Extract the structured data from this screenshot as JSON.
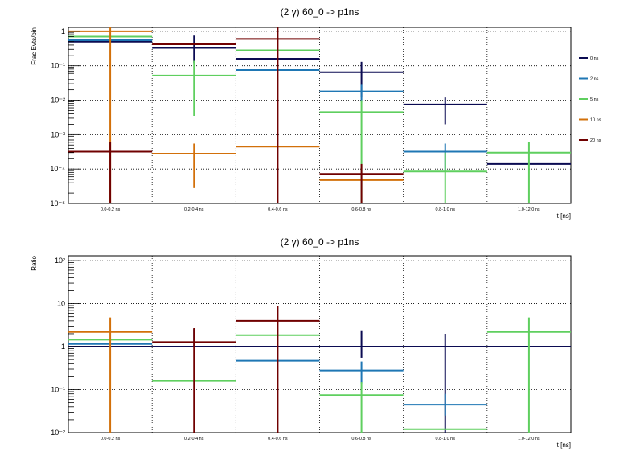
{
  "chart_data": [
    {
      "type": "line",
      "title": "(2 γ) 60_0 -> p1ns",
      "xlabel": "t [ns]",
      "ylabel": "Frac Evts/bin",
      "yscale": "log",
      "ylim": [
        1e-05,
        1.3
      ],
      "ytick_labels": [
        "10⁻⁵",
        "10⁻⁴",
        "10⁻³",
        "10⁻²",
        "10⁻¹",
        "1"
      ],
      "ytick_values": [
        1e-05,
        0.0001,
        0.001,
        0.01,
        0.1,
        1
      ],
      "grid": true,
      "legend_position": "right",
      "categories": [
        "0.0-0.2 ns",
        "0.2-0.4 ns",
        "0.4-0.6 ns",
        "0.6-0.8 ns",
        "0.8-1.0 ns",
        "1.0-12.0 ns"
      ],
      "series": [
        {
          "name": "0 ns",
          "color": "#0b0b52",
          "values": [
            0.5,
            0.33,
            0.16,
            0.065,
            0.0075,
            0.00014
          ],
          "err_low": [
            null,
            0.12,
            null,
            0.012,
            0.002,
            null
          ],
          "err_high": [
            null,
            0.75,
            null,
            0.13,
            0.012,
            null
          ]
        },
        {
          "name": "2 ns",
          "color": "#1f77b4",
          "values": [
            0.55,
            null,
            0.075,
            0.018,
            0.00032,
            null
          ],
          "err_low": [
            null,
            null,
            null,
            0.009,
            8.5e-05,
            null
          ],
          "err_high": [
            null,
            null,
            null,
            0.028,
            0.00055,
            null
          ]
        },
        {
          "name": "5 ns",
          "color": "#5fcf5f",
          "values": [
            0.7,
            0.052,
            0.28,
            0.0045,
            8.5e-05,
            0.0003
          ],
          "err_low": [
            null,
            0.0035,
            null,
            1e-05,
            1e-05,
            1e-05
          ],
          "err_high": [
            null,
            0.14,
            null,
            0.01,
            0.0003,
            0.0006
          ]
        },
        {
          "name": "10 ns",
          "color": "#d2700a",
          "values": [
            1.0,
            0.00028,
            0.00045,
            4.8e-05,
            null,
            null
          ],
          "err_low": [
            1e-05,
            2.8e-05,
            null,
            null,
            null,
            null
          ],
          "err_high": [
            1.3,
            0.00055,
            null,
            null,
            null,
            null
          ]
        },
        {
          "name": "20 ns",
          "color": "#700000",
          "values": [
            0.00032,
            0.42,
            0.6,
            7.2e-05,
            null,
            null
          ],
          "err_low": [
            1e-05,
            null,
            1e-05,
            1e-05,
            null,
            null
          ],
          "err_high": [
            0.00062,
            null,
            1.3,
            0.00014,
            null,
            null
          ]
        }
      ]
    },
    {
      "type": "line",
      "title": "(2 γ) 60_0 -> p1ns",
      "xlabel": "t [ns]",
      "ylabel": "Ratio",
      "yscale": "log",
      "ylim": [
        0.01,
        130
      ],
      "ytick_labels": [
        "10⁻²",
        "10⁻¹",
        "1",
        "10",
        "10²"
      ],
      "ytick_values": [
        0.01,
        0.1,
        1,
        10,
        100
      ],
      "grid": true,
      "categories": [
        "0.0-0.2 ns",
        "0.2-0.4 ns",
        "0.4-0.6 ns",
        "0.6-0.8 ns",
        "0.8-1.0 ns",
        "1.0-12.0 ns"
      ],
      "series": [
        {
          "name": "0 ns",
          "color": "#0b0b52",
          "values": [
            1,
            1,
            1,
            1,
            1,
            1
          ],
          "err_low": [
            null,
            null,
            null,
            0.55,
            0.01,
            null
          ],
          "err_high": [
            null,
            2.6,
            null,
            2.4,
            2.0,
            null
          ]
        },
        {
          "name": "2 ns",
          "color": "#1f77b4",
          "values": [
            1.15,
            null,
            0.47,
            0.28,
            0.045,
            null
          ],
          "err_low": [
            null,
            null,
            null,
            0.14,
            0.025,
            null
          ],
          "err_high": [
            null,
            null,
            null,
            0.45,
            0.08,
            null
          ]
        },
        {
          "name": "5 ns",
          "color": "#5fcf5f",
          "values": [
            1.45,
            0.16,
            1.85,
            0.075,
            0.012,
            2.2
          ],
          "err_low": [
            null,
            null,
            null,
            0.01,
            null,
            0.01
          ],
          "err_high": [
            null,
            null,
            null,
            0.15,
            null,
            4.8
          ]
        },
        {
          "name": "10 ns",
          "color": "#d2700a",
          "values": [
            2.2,
            null,
            null,
            null,
            null,
            null
          ],
          "err_low": [
            0.01,
            null,
            null,
            null,
            null,
            null
          ],
          "err_high": [
            4.8,
            null,
            null,
            null,
            null,
            null
          ]
        },
        {
          "name": "20 ns",
          "color": "#700000",
          "values": [
            null,
            1.28,
            4.0,
            null,
            null,
            null
          ],
          "err_low": [
            null,
            0.01,
            0.01,
            null,
            null,
            null
          ],
          "err_high": [
            null,
            2.7,
            9.0,
            null,
            null,
            null
          ]
        }
      ]
    }
  ]
}
